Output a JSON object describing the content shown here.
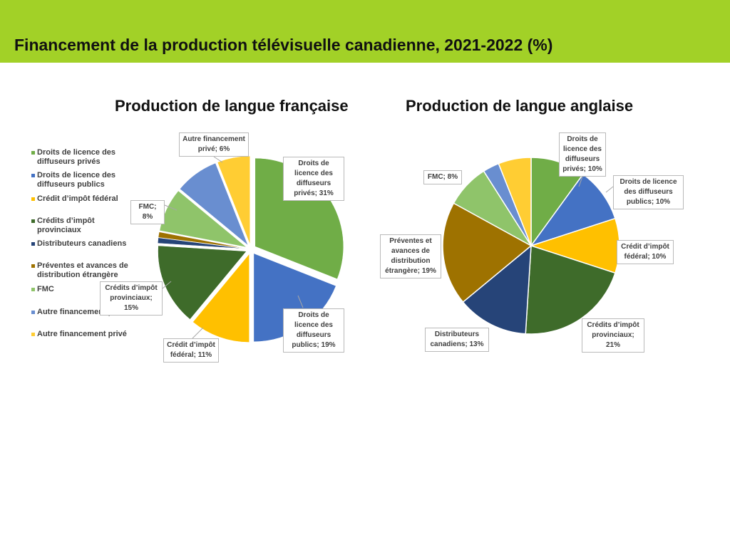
{
  "header": {
    "title": "Financement de la production télévisuelle canadienne, 2021-2022 (%)"
  },
  "colors": {
    "header_bg": "#a2d127",
    "prives": "#70ad47",
    "publics": "#4472c4",
    "federal": "#ffc000",
    "provinciaux": "#3e6b2a",
    "distributeurs": "#264478",
    "preventes": "#9e7200",
    "fmc": "#8fc46a",
    "autre_public": "#698ed0",
    "autre_prive": "#ffcd33"
  },
  "legend": [
    {
      "label": "Droits de licence des diffuseurs privés",
      "color": "#70ad47"
    },
    {
      "label": "Droits de licence des diffuseurs publics",
      "color": "#4472c4"
    },
    {
      "label": "Crédit d’impôt fédéral",
      "color": "#ffc000"
    },
    {
      "label": "Crédits d’impôt provinciaux",
      "color": "#3e6b2a"
    },
    {
      "label": "Distributeurs canadiens",
      "color": "#264478"
    },
    {
      "label": "Préventes et avances de distribution étrangère",
      "color": "#9e7200"
    },
    {
      "label": "FMC",
      "color": "#8fc46a"
    },
    {
      "label": "Autre financement public",
      "color": "#698ed0"
    },
    {
      "label": "Autre financement privé",
      "color": "#ffcd33"
    }
  ],
  "chart_data": [
    {
      "type": "pie",
      "title": "Production de langue française",
      "categories": [
        "Droits de licence des diffuseurs privés",
        "Droits de licence des diffuseurs publics",
        "Crédit d’impôt fédéral",
        "Crédits d’impôt provinciaux",
        "Distributeurs canadiens",
        "Préventes et avances de distribution étrangère",
        "FMC",
        "Autre financement public",
        "Autre financement privé"
      ],
      "values": [
        31,
        19,
        11,
        15,
        1,
        1,
        8,
        8,
        6
      ],
      "exploded": true,
      "callouts": [
        {
          "text": "Droits de licence des diffuseurs privés; 31%"
        },
        {
          "text": "Droits de licence des diffuseurs publics; 19%"
        },
        {
          "text": "Crédit d’impôt fédéral; 11%"
        },
        {
          "text": "Crédits d’impôt provinciaux; 15%"
        },
        {
          "text": "FMC; 8%"
        },
        {
          "text": "Autre financement privé; 6%"
        }
      ]
    },
    {
      "type": "pie",
      "title": "Production de langue anglaise",
      "categories": [
        "Droits de licence des diffuseurs privés",
        "Droits de licence des diffuseurs publics",
        "Crédit d’impôt fédéral",
        "Crédits d’impôt provinciaux",
        "Distributeurs canadiens",
        "Préventes et avances de distribution étrangère",
        "FMC",
        "Autre financement public",
        "Autre financement privé"
      ],
      "values": [
        10,
        10,
        10,
        21,
        13,
        19,
        8,
        3,
        6
      ],
      "exploded": false,
      "callouts": [
        {
          "text": "Droits de licence des diffuseurs privés; 10%"
        },
        {
          "text": "Droits de licence des diffuseurs publics; 10%"
        },
        {
          "text": "Crédit d’impôt fédéral; 10%"
        },
        {
          "text": "Crédits d’impôt provinciaux; 21%"
        },
        {
          "text": "Distributeurs canadiens; 13%"
        },
        {
          "text": "Préventes et avances de distribution étrangère; 19%"
        },
        {
          "text": "FMC; 8%"
        }
      ]
    }
  ]
}
